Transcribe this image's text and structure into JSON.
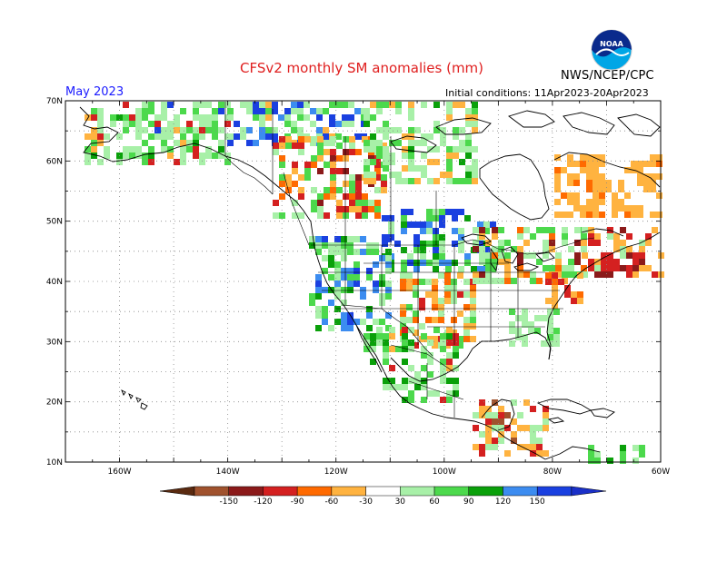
{
  "title": "CFSv2 monthly SM anomalies (mm)",
  "agency": "NWS/NCEP/CPC",
  "valid_month": "May 2023",
  "initial_conditions": "Initial conditions: 11Apr2023-20Apr2023",
  "logo": {
    "text": "NOAA",
    "icon": "noaa-logo-icon"
  },
  "map": {
    "lon_range": [
      -170,
      -60
    ],
    "lat_range": [
      10,
      70
    ],
    "lat_labels": [
      "10N",
      "20N",
      "30N",
      "40N",
      "50N",
      "60N",
      "70N"
    ],
    "lon_labels": [
      "160W",
      "140W",
      "120W",
      "100W",
      "80W",
      "60W"
    ]
  },
  "legend": {
    "labels": [
      "-150",
      "-120",
      "-90",
      "-60",
      "-30",
      "30",
      "60",
      "90",
      "120",
      "150"
    ],
    "colors": [
      "#a0522d",
      "#8b1a1a",
      "#d42020",
      "#ff6a00",
      "#ffb340",
      "#ffffff",
      "#a8f0a8",
      "#4cd94c",
      "#0aa00a",
      "#3c8cf0",
      "#1a40e0"
    ],
    "low_end_color": "#5a2a10",
    "high_end_color": "#1a30c8"
  }
}
